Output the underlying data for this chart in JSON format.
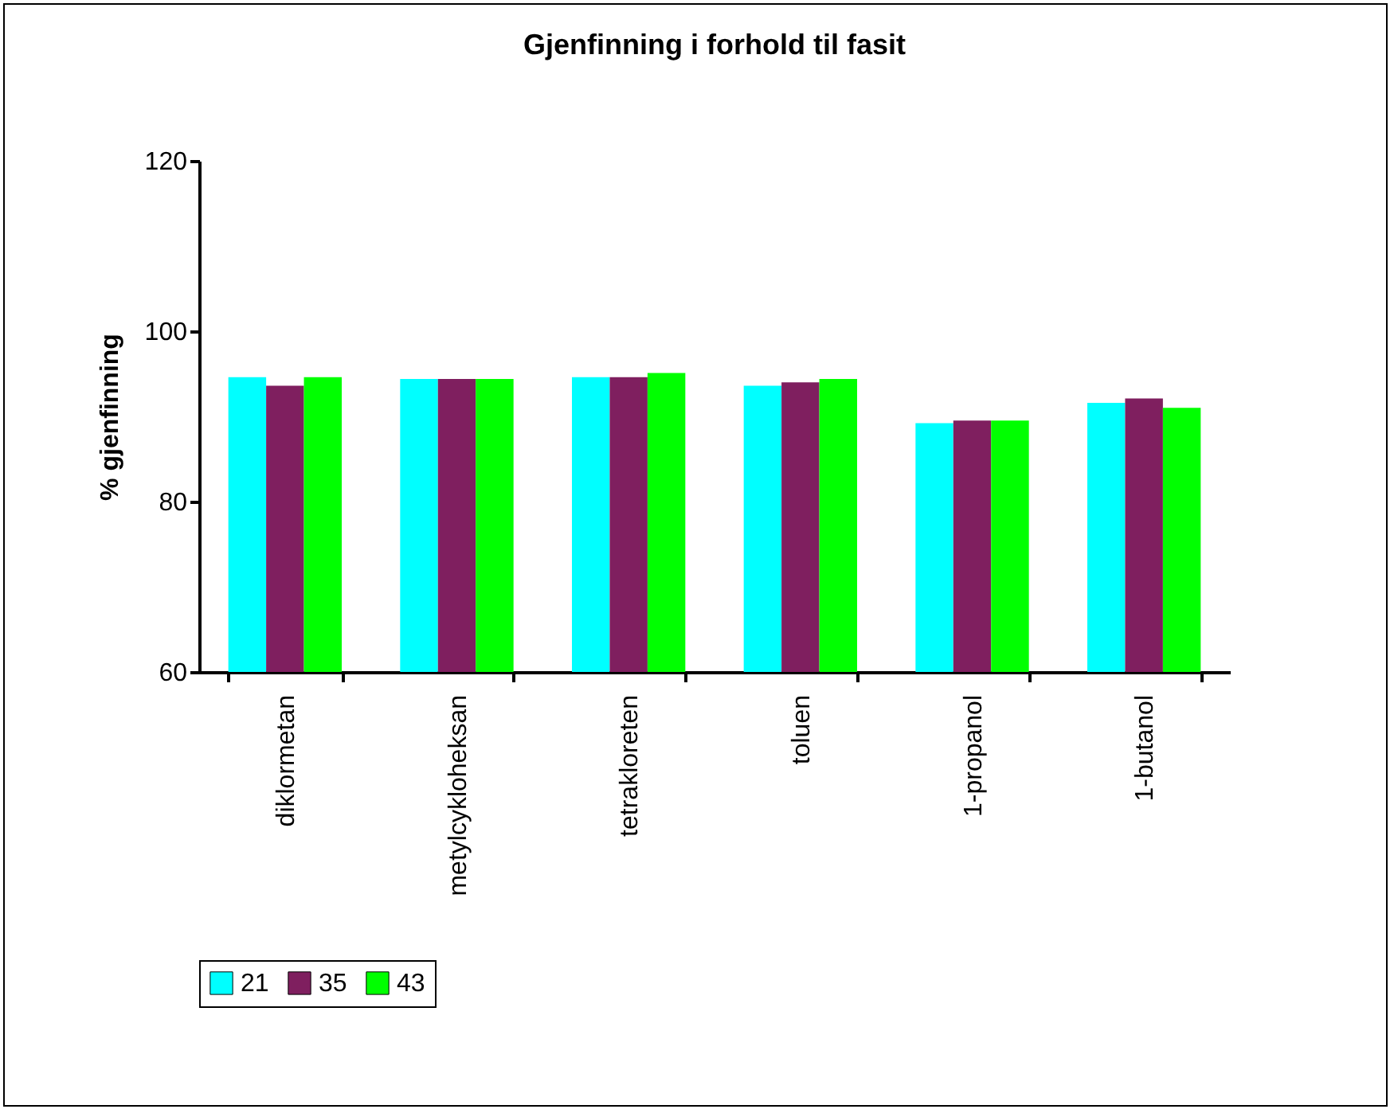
{
  "chart_data": {
    "type": "bar",
    "title": "Gjenfinning i forhold til fasit",
    "ylabel": "% gjenfinning",
    "categories": [
      "diklormetan",
      "metylcykloheksan",
      "tetrakloreten",
      "toluen",
      "1-propanol",
      "1-butanol"
    ],
    "series": [
      {
        "name": "21",
        "color": "#00ffff",
        "values": [
          94.6,
          94.4,
          94.6,
          93.6,
          89.2,
          91.6
        ]
      },
      {
        "name": "35",
        "color": "#7f1f5f",
        "values": [
          93.6,
          94.4,
          94.6,
          94.0,
          89.5,
          92.1
        ]
      },
      {
        "name": "43",
        "color": "#00ff00",
        "values": [
          94.6,
          94.4,
          95.1,
          94.4,
          89.5,
          91.0
        ]
      }
    ],
    "ylim": [
      60,
      120
    ],
    "yticks": [
      60,
      80,
      100,
      120
    ],
    "grid": false,
    "legend": "bottom"
  }
}
